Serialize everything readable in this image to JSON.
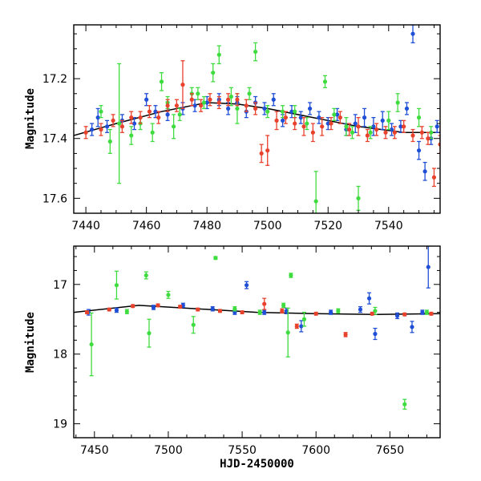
{
  "chart_data": [
    {
      "type": "scatter",
      "title": "",
      "xlabel": "",
      "ylabel": "Magnitude",
      "xlim": [
        7436,
        7557
      ],
      "ylim": [
        17.65,
        17.02
      ],
      "y_inverted": true,
      "xticks": [
        7440,
        7460,
        7480,
        7500,
        7520,
        7540
      ],
      "yticks": [
        17.2,
        17.4,
        17.6
      ],
      "grid": false,
      "colors": {
        "blue": "#1f4fd6",
        "green": "#3fdc3f",
        "red": "#e8412c",
        "model": "#000000"
      },
      "model_curve": {
        "x": [
          7436,
          7450,
          7465,
          7480,
          7490,
          7500,
          7515,
          7530,
          7545,
          7557
        ],
        "y": [
          17.39,
          17.35,
          17.31,
          17.28,
          17.285,
          17.3,
          17.33,
          17.36,
          17.38,
          17.38
        ]
      },
      "series": [
        {
          "color": "blue",
          "points": [
            [
              7442,
              17.37,
              0.02
            ],
            [
              7444,
              17.33,
              0.03
            ],
            [
              7447,
              17.36,
              0.02
            ],
            [
              7452,
              17.34,
              0.02
            ],
            [
              7456,
              17.35,
              0.02
            ],
            [
              7460,
              17.27,
              0.02
            ],
            [
              7463,
              17.31,
              0.02
            ],
            [
              7467,
              17.32,
              0.02
            ],
            [
              7472,
              17.3,
              0.02
            ],
            [
              7476,
              17.29,
              0.02
            ],
            [
              7480,
              17.28,
              0.02
            ],
            [
              7484,
              17.27,
              0.02
            ],
            [
              7487,
              17.3,
              0.02
            ],
            [
              7490,
              17.28,
              0.02
            ],
            [
              7493,
              17.31,
              0.02
            ],
            [
              7496,
              17.28,
              0.02
            ],
            [
              7499,
              17.3,
              0.02
            ],
            [
              7502,
              17.27,
              0.02
            ],
            [
              7505,
              17.34,
              0.02
            ],
            [
              7508,
              17.31,
              0.02
            ],
            [
              7511,
              17.33,
              0.02
            ],
            [
              7514,
              17.3,
              0.02
            ],
            [
              7517,
              17.33,
              0.02
            ],
            [
              7520,
              17.35,
              0.02
            ],
            [
              7523,
              17.32,
              0.02
            ],
            [
              7526,
              17.37,
              0.02
            ],
            [
              7529,
              17.35,
              0.03
            ],
            [
              7532,
              17.33,
              0.03
            ],
            [
              7535,
              17.36,
              0.03
            ],
            [
              7538,
              17.34,
              0.03
            ],
            [
              7541,
              17.37,
              0.02
            ],
            [
              7544,
              17.36,
              0.02
            ],
            [
              7546,
              17.3,
              0.02
            ],
            [
              7548,
              17.05,
              0.03
            ],
            [
              7550,
              17.44,
              0.03
            ],
            [
              7552,
              17.51,
              0.03
            ],
            [
              7554,
              17.4,
              0.02
            ],
            [
              7556,
              17.36,
              0.02
            ]
          ]
        },
        {
          "color": "green",
          "points": [
            [
              7445,
              17.31,
              0.02
            ],
            [
              7448,
              17.41,
              0.04
            ],
            [
              7451,
              17.35,
              0.2
            ],
            [
              7455,
              17.39,
              0.03
            ],
            [
              7458,
              17.35,
              0.02
            ],
            [
              7462,
              17.38,
              0.03
            ],
            [
              7465,
              17.21,
              0.03
            ],
            [
              7467,
              17.28,
              0.02
            ],
            [
              7469,
              17.36,
              0.04
            ],
            [
              7471,
              17.32,
              0.02
            ],
            [
              7475,
              17.25,
              0.02
            ],
            [
              7477,
              17.25,
              0.02
            ],
            [
              7479,
              17.28,
              0.02
            ],
            [
              7482,
              17.18,
              0.03
            ],
            [
              7484,
              17.12,
              0.03
            ],
            [
              7488,
              17.26,
              0.03
            ],
            [
              7490,
              17.3,
              0.05
            ],
            [
              7494,
              17.25,
              0.02
            ],
            [
              7496,
              17.11,
              0.03
            ],
            [
              7500,
              17.31,
              0.02
            ],
            [
              7505,
              17.31,
              0.02
            ],
            [
              7509,
              17.31,
              0.02
            ],
            [
              7513,
              17.35,
              0.02
            ],
            [
              7516,
              17.61,
              0.1
            ],
            [
              7519,
              17.21,
              0.02
            ],
            [
              7522,
              17.32,
              0.02
            ],
            [
              7526,
              17.36,
              0.03
            ],
            [
              7528,
              17.38,
              0.02
            ],
            [
              7530,
              17.6,
              0.04
            ],
            [
              7534,
              17.38,
              0.02
            ],
            [
              7540,
              17.34,
              0.03
            ],
            [
              7543,
              17.28,
              0.03
            ],
            [
              7550,
              17.33,
              0.03
            ],
            [
              7554,
              17.38,
              0.02
            ]
          ]
        },
        {
          "color": "red",
          "points": [
            [
              7440,
              17.38,
              0.02
            ],
            [
              7445,
              17.37,
              0.02
            ],
            [
              7449,
              17.34,
              0.02
            ],
            [
              7452,
              17.36,
              0.02
            ],
            [
              7455,
              17.33,
              0.02
            ],
            [
              7458,
              17.33,
              0.02
            ],
            [
              7461,
              17.31,
              0.02
            ],
            [
              7464,
              17.33,
              0.02
            ],
            [
              7467,
              17.29,
              0.02
            ],
            [
              7470,
              17.29,
              0.02
            ],
            [
              7472,
              17.22,
              0.08
            ],
            [
              7475,
              17.27,
              0.02
            ],
            [
              7478,
              17.29,
              0.02
            ],
            [
              7481,
              17.27,
              0.02
            ],
            [
              7484,
              17.28,
              0.02
            ],
            [
              7487,
              17.27,
              0.02
            ],
            [
              7490,
              17.27,
              0.02
            ],
            [
              7493,
              17.29,
              0.02
            ],
            [
              7496,
              17.3,
              0.02
            ],
            [
              7498,
              17.45,
              0.03
            ],
            [
              7500,
              17.44,
              0.05
            ],
            [
              7503,
              17.34,
              0.03
            ],
            [
              7506,
              17.33,
              0.02
            ],
            [
              7509,
              17.35,
              0.02
            ],
            [
              7512,
              17.36,
              0.03
            ],
            [
              7515,
              17.38,
              0.03
            ],
            [
              7518,
              17.36,
              0.03
            ],
            [
              7521,
              17.35,
              0.02
            ],
            [
              7524,
              17.33,
              0.02
            ],
            [
              7527,
              17.37,
              0.02
            ],
            [
              7530,
              17.36,
              0.03
            ],
            [
              7533,
              17.39,
              0.02
            ],
            [
              7536,
              17.37,
              0.02
            ],
            [
              7539,
              17.38,
              0.02
            ],
            [
              7542,
              17.38,
              0.02
            ],
            [
              7545,
              17.36,
              0.02
            ],
            [
              7548,
              17.39,
              0.02
            ],
            [
              7551,
              17.38,
              0.02
            ],
            [
              7553,
              17.4,
              0.02
            ],
            [
              7555,
              17.53,
              0.03
            ],
            [
              7557,
              17.42,
              0.03
            ]
          ]
        }
      ]
    },
    {
      "type": "scatter",
      "title": "",
      "xlabel": "HJD-2450000",
      "ylabel": "Magnitude",
      "xlim": [
        7436,
        7684
      ],
      "ylim": [
        19.2,
        16.45
      ],
      "y_inverted": true,
      "xticks": [
        7450,
        7500,
        7550,
        7600,
        7650
      ],
      "yticks": [
        17,
        18,
        19
      ],
      "grid": false,
      "colors": {
        "blue": "#1f4fd6",
        "green": "#3fdc3f",
        "red": "#e8412c",
        "model": "#000000"
      },
      "model_curve": {
        "x": [
          7436,
          7480,
          7520,
          7560,
          7600,
          7640,
          7684
        ],
        "y": [
          17.4,
          17.3,
          17.35,
          17.4,
          17.42,
          17.43,
          17.42
        ]
      },
      "series": [
        {
          "color": "blue",
          "points": [
            [
              7446,
              17.4,
              0.04
            ],
            [
              7465,
              17.37,
              0.03
            ],
            [
              7490,
              17.33,
              0.03
            ],
            [
              7510,
              17.3,
              0.03
            ],
            [
              7530,
              17.35,
              0.03
            ],
            [
              7545,
              17.4,
              0.03
            ],
            [
              7553,
              17.01,
              0.05
            ],
            [
              7565,
              17.4,
              0.03
            ],
            [
              7580,
              17.38,
              0.04
            ],
            [
              7590,
              17.6,
              0.08
            ],
            [
              7610,
              17.4,
              0.03
            ],
            [
              7630,
              17.36,
              0.04
            ],
            [
              7636,
              17.2,
              0.08
            ],
            [
              7640,
              17.71,
              0.08
            ],
            [
              7655,
              17.45,
              0.04
            ],
            [
              7665,
              17.61,
              0.08
            ],
            [
              7672,
              17.4,
              0.03
            ],
            [
              7676,
              16.75,
              0.3
            ]
          ]
        },
        {
          "color": "green",
          "points": [
            [
              7448,
              17.86,
              0.45
            ],
            [
              7465,
              17.01,
              0.2
            ],
            [
              7472,
              17.39,
              0.03
            ],
            [
              7485,
              16.87,
              0.05
            ],
            [
              7487,
              17.7,
              0.2
            ],
            [
              7500,
              17.15,
              0.05
            ],
            [
              7517,
              17.58,
              0.12
            ],
            [
              7532,
              16.62,
              0.02
            ],
            [
              7545,
              17.35,
              0.03
            ],
            [
              7562,
              17.4,
              0.03
            ],
            [
              7578,
              17.3,
              0.03
            ],
            [
              7581,
              17.69,
              0.35
            ],
            [
              7583,
              16.87,
              0.03
            ],
            [
              7592,
              17.5,
              0.1
            ],
            [
              7615,
              17.38,
              0.03
            ],
            [
              7640,
              17.38,
              0.05
            ],
            [
              7660,
              18.72,
              0.07
            ],
            [
              7675,
              17.4,
              0.03
            ]
          ]
        },
        {
          "color": "red",
          "points": [
            [
              7445,
              17.4,
              0.02
            ],
            [
              7460,
              17.36,
              0.02
            ],
            [
              7476,
              17.31,
              0.02
            ],
            [
              7493,
              17.3,
              0.02
            ],
            [
              7508,
              17.32,
              0.02
            ],
            [
              7520,
              17.36,
              0.02
            ],
            [
              7535,
              17.38,
              0.02
            ],
            [
              7550,
              17.4,
              0.02
            ],
            [
              7565,
              17.28,
              0.08
            ],
            [
              7577,
              17.38,
              0.03
            ],
            [
              7587,
              17.6,
              0.03
            ],
            [
              7600,
              17.42,
              0.02
            ],
            [
              7620,
              17.72,
              0.03
            ],
            [
              7638,
              17.42,
              0.02
            ],
            [
              7660,
              17.43,
              0.02
            ],
            [
              7678,
              17.42,
              0.02
            ]
          ]
        }
      ]
    }
  ]
}
